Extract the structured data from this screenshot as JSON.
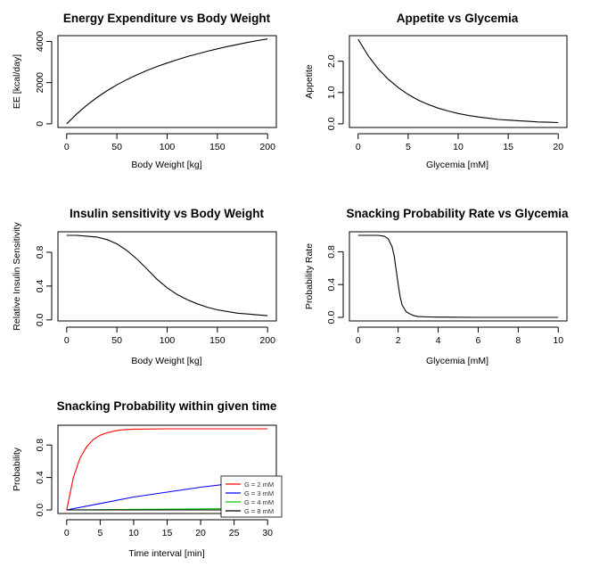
{
  "chart_data": [
    {
      "type": "line",
      "title": "Energy Expenditure vs Body Weight",
      "xlabel": "Body Weight [kg]",
      "ylabel": "EE [kcal/day]",
      "xlim": [
        0,
        200
      ],
      "ylim": [
        0,
        4100
      ],
      "xticks": [
        0,
        50,
        100,
        150,
        200
      ],
      "yticks": [
        0,
        2000,
        4000
      ],
      "series": [
        {
          "name": "EE",
          "color": "#000000",
          "x": [
            0,
            10,
            20,
            30,
            40,
            50,
            60,
            70,
            80,
            90,
            100,
            110,
            120,
            130,
            140,
            150,
            160,
            170,
            180,
            190,
            200
          ],
          "y": [
            0,
            480,
            900,
            1270,
            1600,
            1890,
            2150,
            2380,
            2590,
            2780,
            2950,
            3110,
            3260,
            3390,
            3520,
            3640,
            3750,
            3850,
            3950,
            4040,
            4120
          ]
        }
      ]
    },
    {
      "type": "line",
      "title": "Appetite vs Glycemia",
      "xlabel": "Glycemia [mM]",
      "ylabel": "Appetite",
      "xlim": [
        0,
        20
      ],
      "ylim": [
        0,
        2.7
      ],
      "xticks": [
        0,
        5,
        10,
        15,
        20
      ],
      "yticks": [
        0.0,
        1.0,
        2.0
      ],
      "ytick_labels": [
        "0.0",
        "1.0",
        "2.0"
      ],
      "series": [
        {
          "name": "Appetite",
          "color": "#000000",
          "x": [
            0,
            1,
            2,
            3,
            4,
            5,
            6,
            7,
            8,
            9,
            10,
            11,
            12,
            13,
            14,
            15,
            16,
            17,
            18,
            19,
            20
          ],
          "y": [
            2.7,
            2.18,
            1.76,
            1.43,
            1.16,
            0.94,
            0.76,
            0.62,
            0.5,
            0.41,
            0.33,
            0.27,
            0.22,
            0.18,
            0.14,
            0.12,
            0.1,
            0.08,
            0.06,
            0.05,
            0.04
          ]
        }
      ]
    },
    {
      "type": "line",
      "title": "Insulin sensitivity vs Body Weight",
      "xlabel": "Body Weight [kg]",
      "ylabel": "Relative Insulin Sensitivity",
      "xlim": [
        0,
        200
      ],
      "ylim": [
        0.03,
        1.0
      ],
      "xticks": [
        0,
        50,
        100,
        150,
        200
      ],
      "yticks": [
        0.0,
        0.4,
        0.8
      ],
      "ytick_labels": [
        "0.0",
        "0.4",
        "0.8"
      ],
      "series": [
        {
          "name": "Sensitivity",
          "color": "#000000",
          "x": [
            0,
            10,
            20,
            30,
            40,
            50,
            60,
            70,
            80,
            90,
            100,
            110,
            120,
            130,
            140,
            150,
            160,
            170,
            180,
            190,
            200
          ],
          "y": [
            1.0,
            1.0,
            0.99,
            0.98,
            0.95,
            0.9,
            0.82,
            0.72,
            0.6,
            0.48,
            0.38,
            0.3,
            0.24,
            0.19,
            0.15,
            0.12,
            0.1,
            0.08,
            0.07,
            0.06,
            0.05
          ]
        }
      ]
    },
    {
      "type": "line",
      "title": "Snacking Probability Rate vs Glycemia",
      "xlabel": "Glycemia [mM]",
      "ylabel": "Probability Rate",
      "xlim": [
        0,
        10
      ],
      "ylim": [
        0,
        1.0
      ],
      "xticks": [
        0,
        2,
        4,
        6,
        8,
        10
      ],
      "yticks": [
        0.0,
        0.4,
        0.8
      ],
      "ytick_labels": [
        "0.0",
        "0.4",
        "0.8"
      ],
      "series": [
        {
          "name": "Rate",
          "color": "#000000",
          "x": [
            0,
            0.5,
            1.0,
            1.3,
            1.5,
            1.7,
            1.8,
            1.9,
            2.0,
            2.1,
            2.2,
            2.4,
            2.6,
            2.8,
            3.0,
            3.5,
            4,
            6,
            8,
            10
          ],
          "y": [
            1.0,
            1.0,
            1.0,
            0.99,
            0.96,
            0.86,
            0.75,
            0.58,
            0.4,
            0.25,
            0.15,
            0.07,
            0.04,
            0.02,
            0.01,
            0.005,
            0.003,
            0.0,
            0.0,
            0.0
          ]
        }
      ]
    },
    {
      "type": "line",
      "title": "Snacking Probability within given time",
      "xlabel": "Time interval [min]",
      "ylabel": "Probability",
      "xlim": [
        0,
        30
      ],
      "ylim": [
        0,
        1.0
      ],
      "xticks": [
        0,
        5,
        10,
        15,
        20,
        25,
        30
      ],
      "yticks": [
        0.0,
        0.4,
        0.8
      ],
      "ytick_labels": [
        "0.0",
        "0.4",
        "0.8"
      ],
      "legend_position": "bottom-right",
      "series": [
        {
          "name": "G = 2 mM",
          "color": "#ff0000",
          "x": [
            0,
            1,
            2,
            3,
            4,
            5,
            6,
            7,
            8,
            10,
            15,
            20,
            25,
            30
          ],
          "y": [
            0,
            0.4,
            0.64,
            0.78,
            0.87,
            0.92,
            0.95,
            0.97,
            0.985,
            0.995,
            1.0,
            1.0,
            1.0,
            1.0
          ]
        },
        {
          "name": "G = 3 mM",
          "color": "#0000ff",
          "x": [
            0,
            5,
            10,
            15,
            20,
            25,
            30
          ],
          "y": [
            0,
            0.08,
            0.16,
            0.22,
            0.28,
            0.33,
            0.38
          ]
        },
        {
          "name": "G = 4 mM",
          "color": "#00cc00",
          "x": [
            0,
            30
          ],
          "y": [
            0,
            0.02
          ]
        },
        {
          "name": "G = 8 mM",
          "color": "#000000",
          "x": [
            0,
            30
          ],
          "y": [
            0,
            0.0
          ]
        }
      ]
    }
  ]
}
